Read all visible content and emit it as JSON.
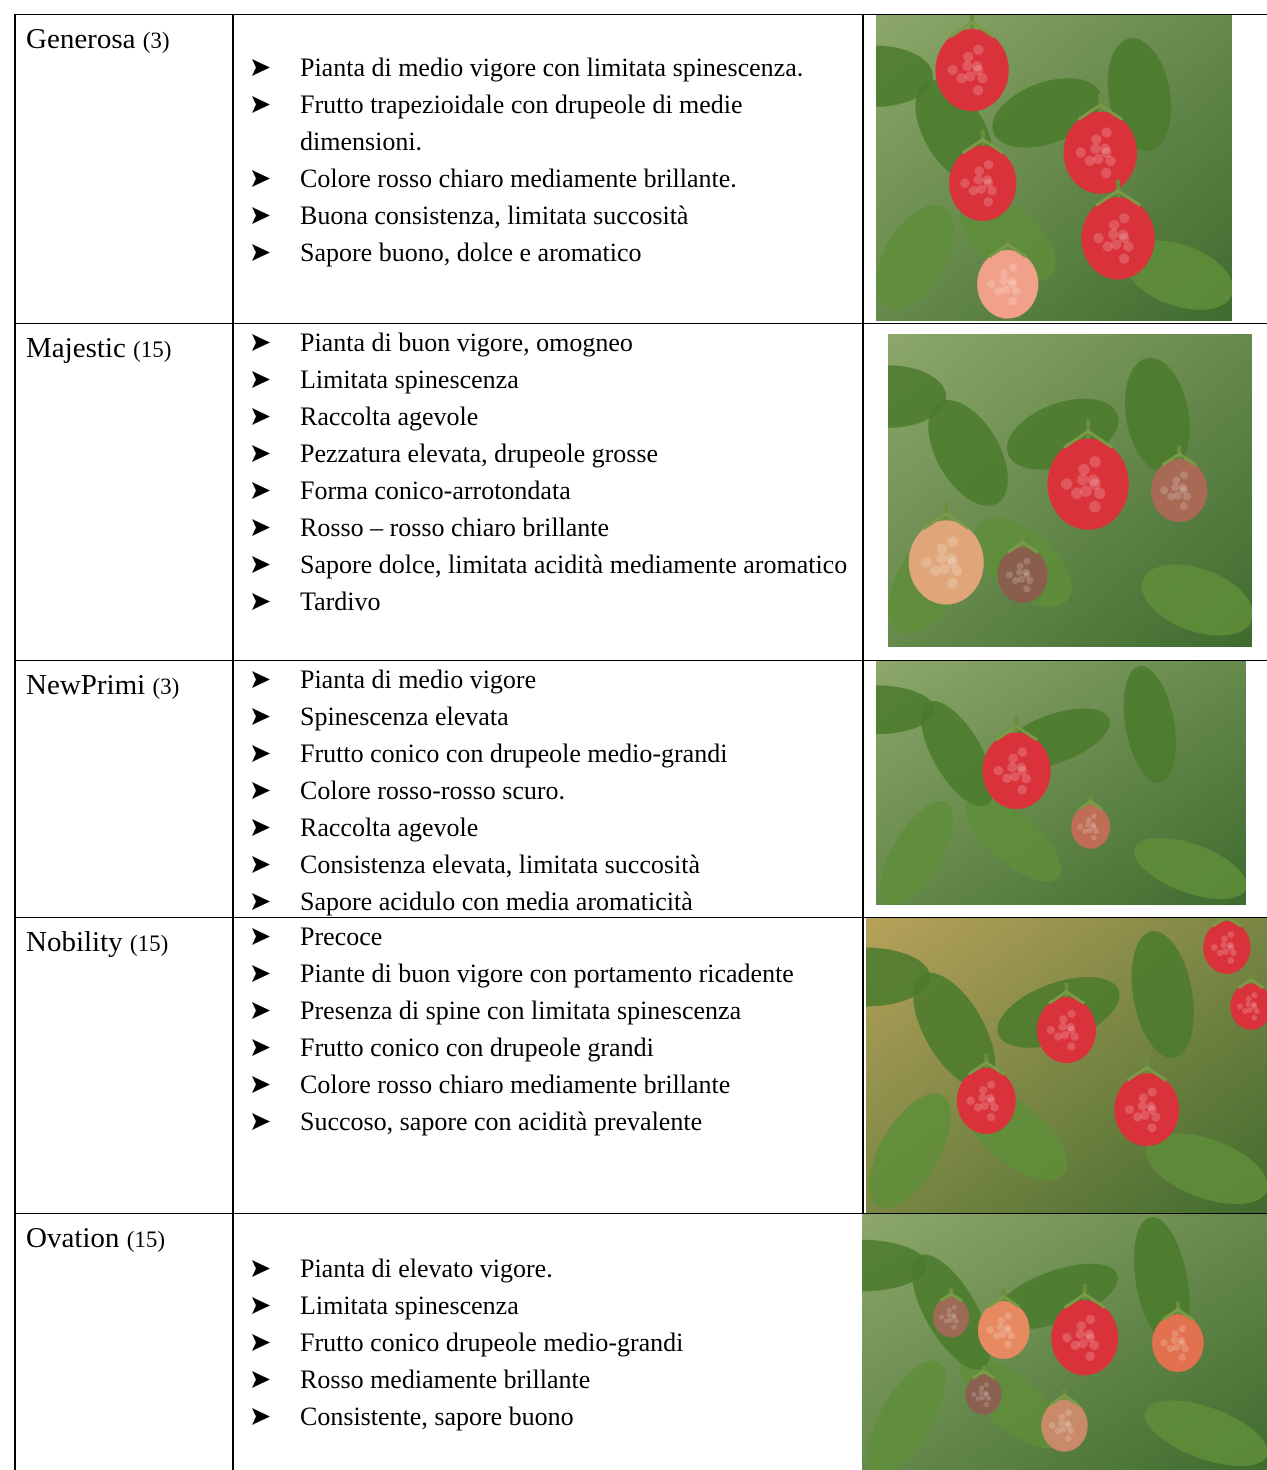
{
  "table": {
    "rows": [
      {
        "name": "Generosa",
        "count": "(3)",
        "features": [
          "Pianta di medio vigore con limitata spinescenza.",
          "Frutto trapezioidale con drupeole di medie dimensioni.",
          "Colore rosso chiaro mediamente brillante.",
          "Buona consistenza, limitata succosità",
          "Sapore buono, dolce e aromatico"
        ]
      },
      {
        "name": "Majestic",
        "count": "(15)",
        "features": [
          "Pianta di buon vigore, omogneo",
          "Limitata spinescenza",
          "Raccolta agevole",
          "Pezzatura elevata, drupeole grosse",
          "Forma conico-arrotondata",
          "Rosso – rosso chiaro brillante",
          "Sapore dolce, limitata acidità mediamente aromatico",
          "Tardivo"
        ]
      },
      {
        "name": "NewPrimi",
        "count": "(3)",
        "features": [
          "Pianta di medio vigore",
          "Spinescenza elevata",
          "Frutto conico con drupeole medio-grandi",
          "Colore rosso-rosso scuro.",
          "Raccolta agevole",
          "Consistenza elevata, limitata succosità",
          "Sapore acidulo con media aromaticità"
        ]
      },
      {
        "name": "Nobility",
        "count": "(15)",
        "features": [
          "Precoce",
          "Piante di buon vigore con portamento ricadente",
          "Presenza di spine con limitata spinescenza",
          "Frutto conico con drupeole grandi",
          "Colore rosso chiaro mediamente brillante",
          "Succoso, sapore con acidità prevalente"
        ]
      },
      {
        "name": "Ovation",
        "count": "(15)",
        "features": [
          "Pianta di elevato vigore.",
          "Limitata spinescenza",
          "Frutto conico drupeole medio-grandi",
          "Rosso mediamente brillante",
          "Consistente, sapore buono"
        ]
      }
    ]
  }
}
